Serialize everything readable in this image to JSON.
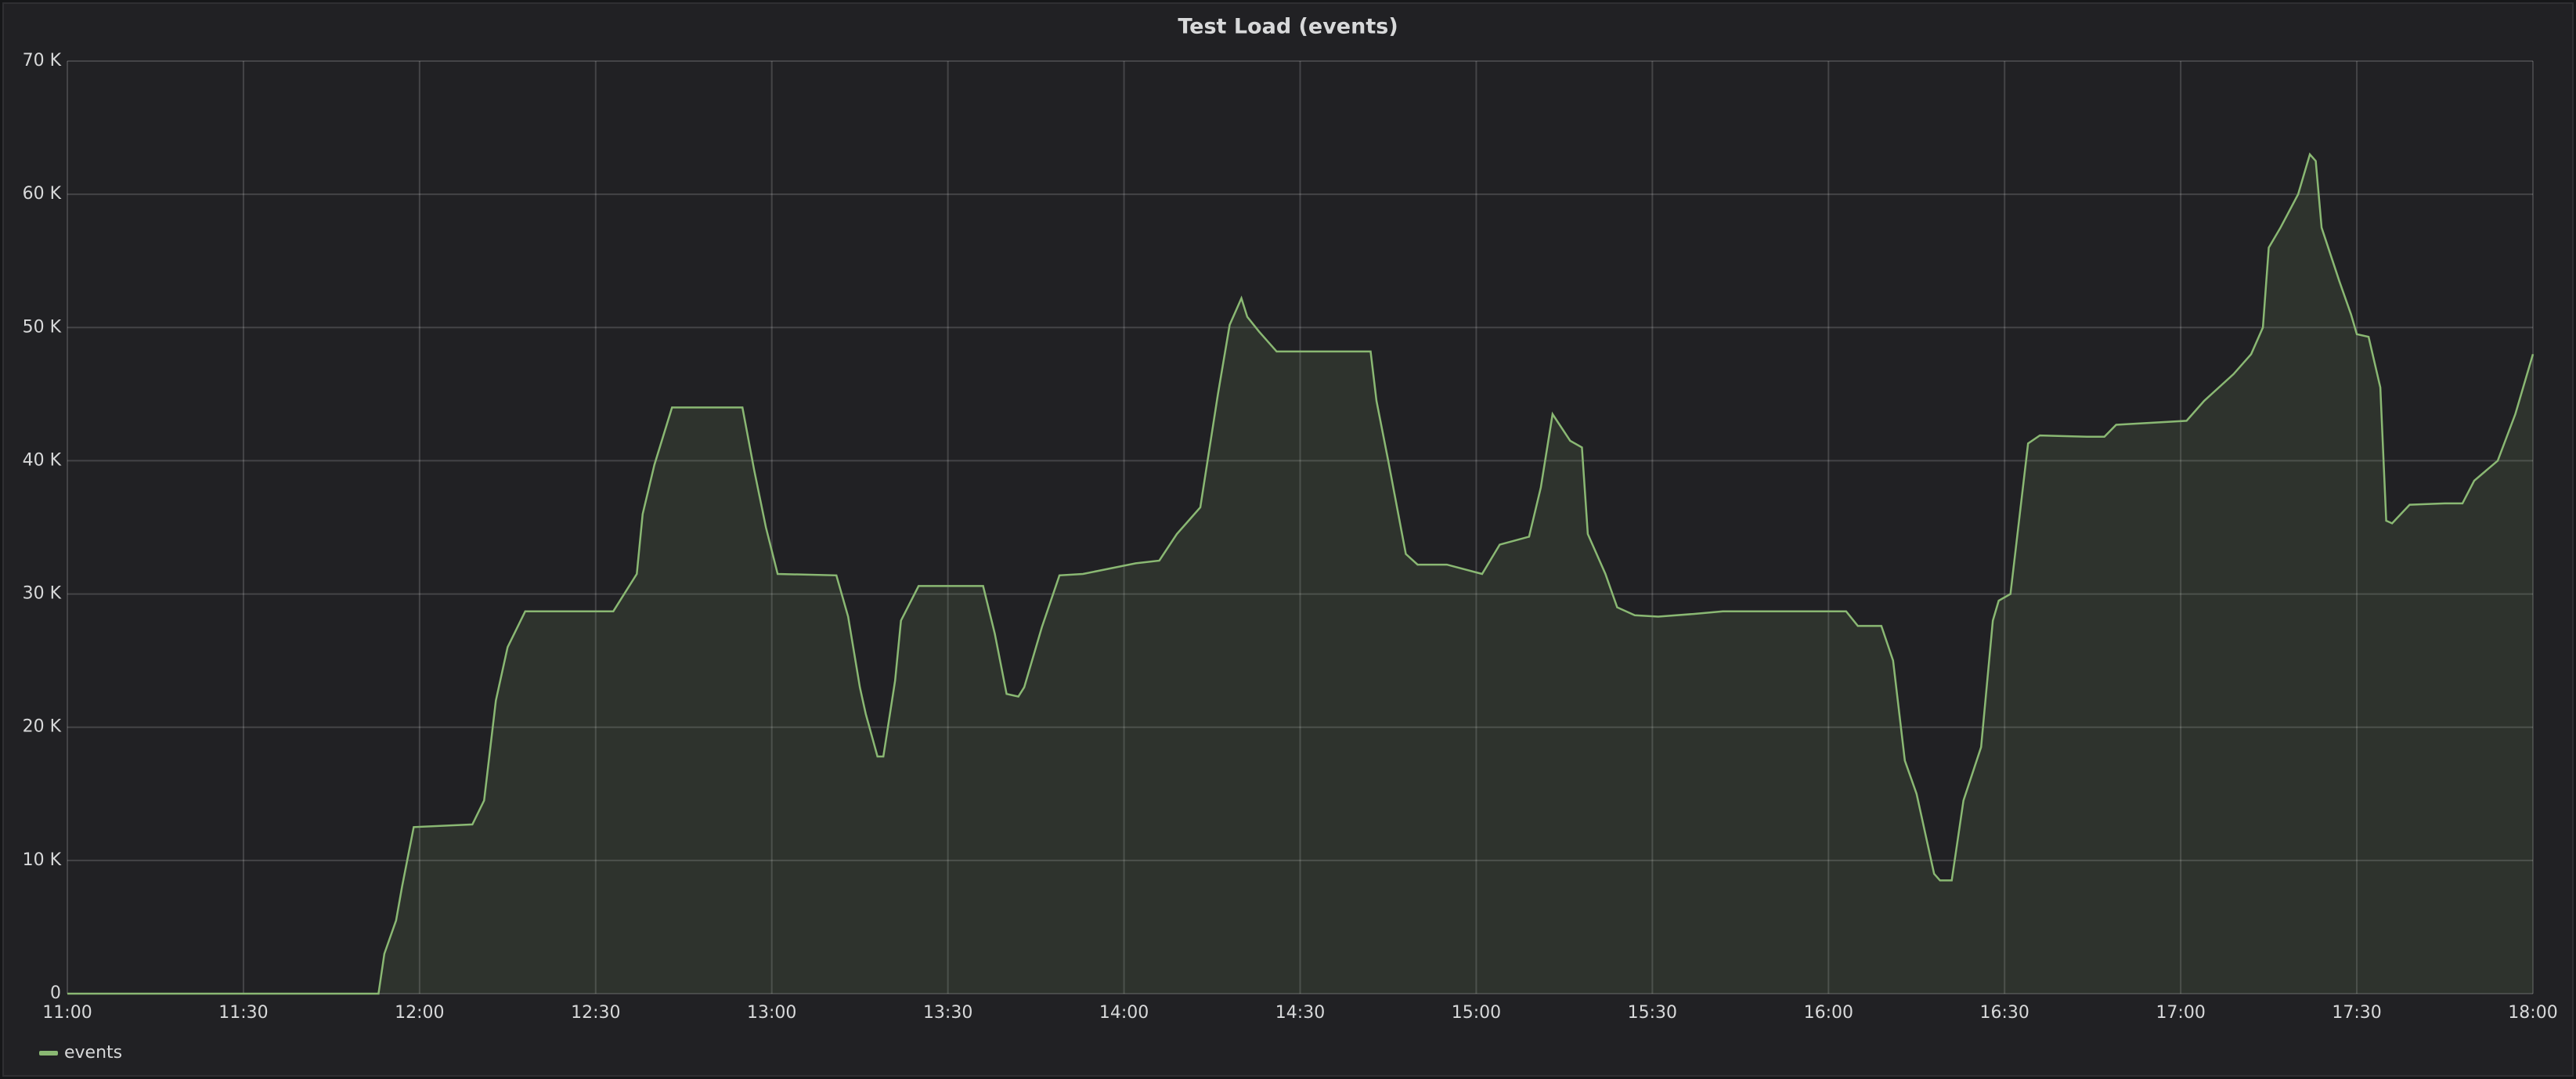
{
  "chart_data": {
    "type": "line",
    "title": "Test Load (events)",
    "x": [
      "11:00",
      "11:53",
      "11:54",
      "11:56",
      "11:57",
      "11:59",
      "12:09",
      "12:11",
      "12:13",
      "12:15",
      "12:18",
      "12:33",
      "12:37",
      "12:38",
      "12:40",
      "12:43",
      "12:55",
      "12:57",
      "12:59",
      "13:01",
      "13:11",
      "13:13",
      "13:15",
      "13:16",
      "13:18",
      "13:19",
      "13:21",
      "13:22",
      "13:25",
      "13:36",
      "13:38",
      "13:40",
      "13:42",
      "13:43",
      "13:46",
      "13:49",
      "13:53",
      "14:02",
      "14:06",
      "14:09",
      "14:13",
      "14:16",
      "14:18",
      "14:20",
      "14:21",
      "14:23",
      "14:26",
      "14:42",
      "14:43",
      "14:45",
      "14:48",
      "14:50",
      "14:55",
      "15:01",
      "15:04",
      "15:09",
      "15:11",
      "15:13",
      "15:16",
      "15:18",
      "15:19",
      "15:22",
      "15:24",
      "15:27",
      "15:31",
      "15:37",
      "15:42",
      "16:03",
      "16:05",
      "16:09",
      "16:11",
      "16:13",
      "16:15",
      "16:18",
      "16:19",
      "16:21",
      "16:23",
      "16:26",
      "16:28",
      "16:29",
      "16:31",
      "16:34",
      "16:36",
      "16:44",
      "16:47",
      "16:49",
      "17:01",
      "17:04",
      "17:09",
      "17:12",
      "17:14",
      "17:15",
      "17:17",
      "17:20",
      "17:22",
      "17:23",
      "17:24",
      "17:27",
      "17:29",
      "17:30",
      "17:32",
      "17:34",
      "17:35",
      "17:36",
      "17:39",
      "17:45",
      "17:48",
      "17:50",
      "17:54",
      "17:57",
      "18:00"
    ],
    "series": [
      {
        "name": "events",
        "color": "#8ab873",
        "values": [
          0,
          0,
          3000,
          5500,
          8000,
          12500,
          12700,
          14500,
          22000,
          26000,
          28700,
          28700,
          31500,
          36000,
          39700,
          44000,
          44000,
          39300,
          35000,
          31500,
          31400,
          28300,
          23000,
          21000,
          17800,
          17800,
          23500,
          28000,
          30600,
          30600,
          27000,
          22500,
          22300,
          23000,
          27500,
          31400,
          31500,
          32300,
          32500,
          34500,
          36500,
          45000,
          50200,
          52200,
          50800,
          49700,
          48200,
          48200,
          44500,
          40000,
          33000,
          32200,
          32200,
          31500,
          33700,
          34300,
          38000,
          43500,
          41500,
          41000,
          34500,
          31500,
          29000,
          28400,
          28300,
          28500,
          28700,
          28700,
          27600,
          27600,
          25000,
          17500,
          15000,
          9000,
          8500,
          8500,
          14500,
          18500,
          28000,
          29500,
          30000,
          41300,
          41900,
          41800,
          41800,
          42700,
          43000,
          44500,
          46500,
          48000,
          50000,
          56000,
          57500,
          60000,
          63000,
          62500,
          57500,
          53500,
          51000,
          49500,
          49300,
          45500,
          35500,
          35300,
          36700,
          36800,
          36800,
          38500,
          40000,
          43500,
          48000
        ]
      }
    ],
    "xlim": [
      "11:00",
      "18:00"
    ],
    "xticks": [
      "11:00",
      "11:30",
      "12:00",
      "12:30",
      "13:00",
      "13:30",
      "14:00",
      "14:30",
      "15:00",
      "15:30",
      "16:00",
      "16:30",
      "17:00",
      "17:30",
      "18:00"
    ],
    "ylim": [
      0,
      70000
    ],
    "yticks": [
      0,
      {
        "value": 10000,
        "label": "10 K"
      },
      {
        "value": 20000,
        "label": "20 K"
      },
      {
        "value": 30000,
        "label": "30 K"
      },
      {
        "value": 40000,
        "label": "40 K"
      },
      {
        "value": 50000,
        "label": "50 K"
      },
      {
        "value": 60000,
        "label": "60 K"
      },
      {
        "value": 70000,
        "label": "70 K"
      }
    ],
    "grid": true,
    "legend": "bottom-left"
  }
}
